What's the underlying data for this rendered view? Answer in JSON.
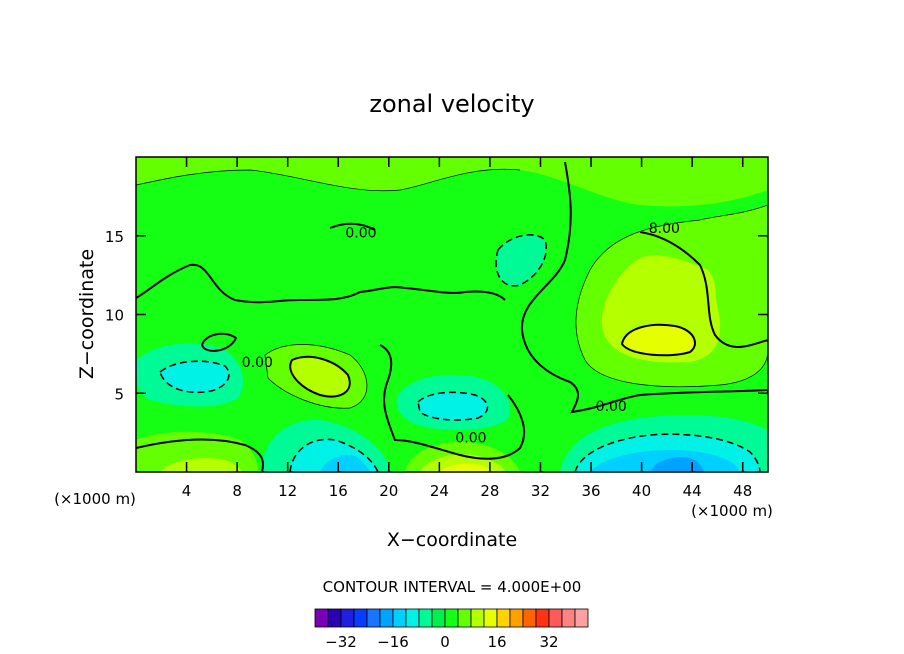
{
  "chart_data": {
    "type": "heatmap",
    "subtype": "filled-contour",
    "title": "zonal velocity",
    "xlabel": "X−coordinate",
    "ylabel": "Z−coordinate",
    "x_unit_left": "(×1000 m)",
    "x_unit_right": "(×1000 m)",
    "xlim": [
      0,
      50
    ],
    "ylim": [
      0,
      20
    ],
    "xticks": [
      4,
      8,
      12,
      16,
      20,
      24,
      28,
      32,
      36,
      40,
      44,
      48
    ],
    "yticks": [
      5,
      10,
      15
    ],
    "contour_interval_text": "CONTOUR INTERVAL = 4.000E+00",
    "contour_labels": [
      {
        "text": "0.00",
        "x": 17.8,
        "z": 15.2
      },
      {
        "text": "8.00",
        "x": 41.8,
        "z": 15.5
      },
      {
        "text": "0.00",
        "x": 9.6,
        "z": 7.0
      },
      {
        "text": "0.00",
        "x": 37.6,
        "z": 4.2
      },
      {
        "text": "0.00",
        "x": 26.5,
        "z": 2.2
      }
    ],
    "field_features": [
      {
        "kind": "max",
        "x": 41.5,
        "z": 8.2,
        "value": 14
      },
      {
        "kind": "max",
        "x": 13.5,
        "z": 6.0,
        "value": 9
      },
      {
        "kind": "max",
        "x": 26.0,
        "z": 0.5,
        "value": 10
      },
      {
        "kind": "max",
        "x": 5.0,
        "z": 0.5,
        "value": 10
      },
      {
        "kind": "min",
        "x": 23.5,
        "z": 4.3,
        "value": -12
      },
      {
        "kind": "min",
        "x": 5.0,
        "z": 6.0,
        "value": -8
      },
      {
        "kind": "min",
        "x": 42.5,
        "z": 0.8,
        "value": -22
      },
      {
        "kind": "min",
        "x": 17.0,
        "z": 0.8,
        "value": -18
      },
      {
        "kind": "min",
        "x": 30.5,
        "z": 13.8,
        "value": -5
      }
    ],
    "colorbar": {
      "levels": [
        -36,
        -32,
        -28,
        -24,
        -20,
        -16,
        -12,
        -8,
        -4,
        0,
        4,
        8,
        12,
        16,
        20,
        24,
        28,
        32,
        36
      ],
      "tick_labels": [
        "−32",
        "−16",
        "0",
        "16",
        "32"
      ],
      "tick_values": [
        -32,
        -16,
        0,
        16,
        32
      ],
      "colors": [
        "#7a00b8",
        "#2a00b4",
        "#1f1fe0",
        "#0a3cff",
        "#1a74ff",
        "#00a4ff",
        "#00d0ff",
        "#00f2e6",
        "#00fa96",
        "#00f050",
        "#14ff14",
        "#64ff00",
        "#b4ff00",
        "#e6ff00",
        "#ffd200",
        "#ffa000",
        "#ff6400",
        "#ff3214",
        "#ff5a5a",
        "#ff8282",
        "#ffa0a0"
      ]
    }
  }
}
